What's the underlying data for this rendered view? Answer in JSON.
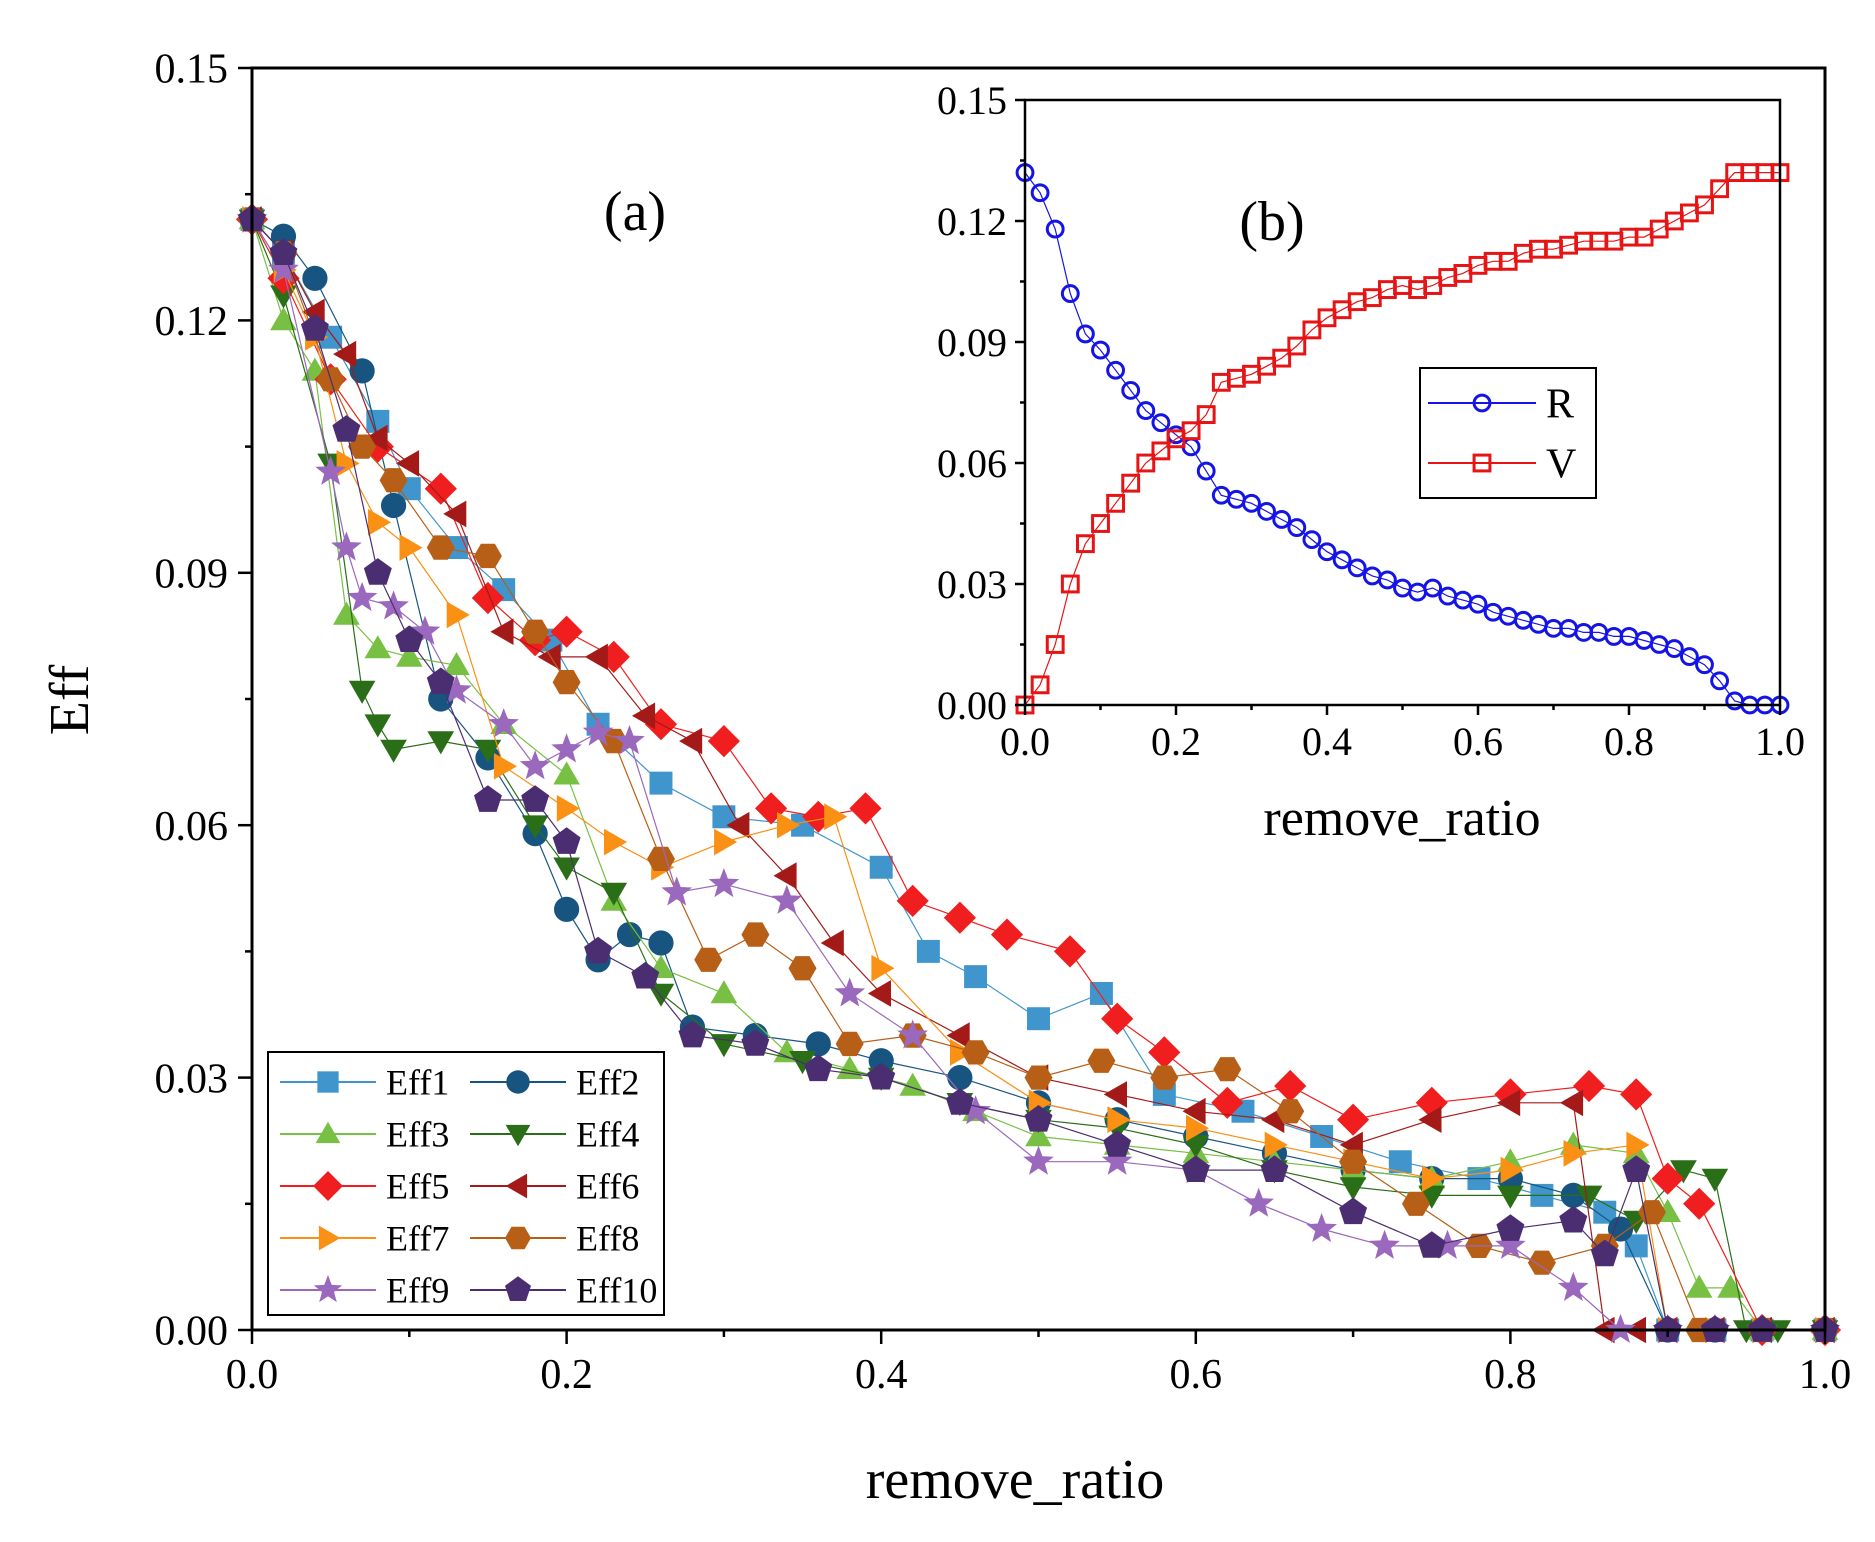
{
  "chart_data": [
    {
      "type": "scatter",
      "panel": "(a)",
      "xlabel": "remove_ratio",
      "ylabel": "Eff",
      "xlim": [
        0.0,
        1.0
      ],
      "ylim": [
        0.0,
        0.15
      ],
      "xticks": [
        "0.0",
        "0.2",
        "0.4",
        "0.6",
        "0.8",
        "1.0"
      ],
      "yticks": [
        "0.00",
        "0.03",
        "0.06",
        "0.09",
        "0.12",
        "0.15"
      ],
      "legend_placement": "bottom-left",
      "series": [
        {
          "name": "Eff1",
          "color": "#4096cc",
          "marker": "square",
          "x": [
            0.0,
            0.02,
            0.05,
            0.08,
            0.1,
            0.13,
            0.16,
            0.19,
            0.22,
            0.26,
            0.3,
            0.35,
            0.4,
            0.43,
            0.46,
            0.5,
            0.54,
            0.58,
            0.63,
            0.68,
            0.73,
            0.78,
            0.82,
            0.86,
            0.88,
            0.9,
            0.93,
            0.96,
            1.0
          ],
          "y": [
            0.132,
            0.128,
            0.118,
            0.108,
            0.1,
            0.093,
            0.088,
            0.082,
            0.072,
            0.065,
            0.061,
            0.06,
            0.055,
            0.045,
            0.042,
            0.037,
            0.04,
            0.028,
            0.026,
            0.023,
            0.02,
            0.018,
            0.016,
            0.014,
            0.01,
            0.0,
            0.0,
            0.0,
            0.0
          ]
        },
        {
          "name": "Eff2",
          "color": "#175580",
          "marker": "circle",
          "x": [
            0.0,
            0.02,
            0.04,
            0.07,
            0.09,
            0.12,
            0.15,
            0.18,
            0.2,
            0.22,
            0.24,
            0.26,
            0.28,
            0.32,
            0.36,
            0.4,
            0.45,
            0.5,
            0.55,
            0.6,
            0.65,
            0.7,
            0.75,
            0.8,
            0.84,
            0.87,
            0.9,
            0.93,
            0.96,
            1.0
          ],
          "y": [
            0.132,
            0.13,
            0.125,
            0.114,
            0.098,
            0.075,
            0.068,
            0.059,
            0.05,
            0.044,
            0.047,
            0.046,
            0.036,
            0.035,
            0.034,
            0.032,
            0.03,
            0.027,
            0.025,
            0.023,
            0.021,
            0.019,
            0.018,
            0.018,
            0.016,
            0.012,
            0.0,
            0.0,
            0.0,
            0.0
          ]
        },
        {
          "name": "Eff3",
          "color": "#77c043",
          "marker": "triangle-up",
          "x": [
            0.0,
            0.02,
            0.04,
            0.06,
            0.08,
            0.1,
            0.13,
            0.16,
            0.2,
            0.23,
            0.26,
            0.3,
            0.34,
            0.38,
            0.42,
            0.46,
            0.5,
            0.55,
            0.6,
            0.65,
            0.7,
            0.75,
            0.8,
            0.84,
            0.88,
            0.9,
            0.92,
            0.94,
            0.96,
            1.0
          ],
          "y": [
            0.132,
            0.12,
            0.114,
            0.085,
            0.081,
            0.08,
            0.079,
            0.072,
            0.066,
            0.051,
            0.043,
            0.04,
            0.033,
            0.031,
            0.029,
            0.026,
            0.023,
            0.022,
            0.021,
            0.02,
            0.019,
            0.018,
            0.02,
            0.022,
            0.021,
            0.014,
            0.005,
            0.005,
            0.0,
            0.0
          ]
        },
        {
          "name": "Eff4",
          "color": "#2a6e18",
          "marker": "triangle-down",
          "x": [
            0.0,
            0.02,
            0.05,
            0.07,
            0.08,
            0.09,
            0.12,
            0.15,
            0.18,
            0.2,
            0.23,
            0.26,
            0.3,
            0.35,
            0.4,
            0.45,
            0.5,
            0.55,
            0.6,
            0.65,
            0.7,
            0.75,
            0.8,
            0.85,
            0.88,
            0.91,
            0.93,
            0.95,
            0.97,
            1.0
          ],
          "y": [
            0.132,
            0.123,
            0.103,
            0.076,
            0.072,
            0.069,
            0.07,
            0.069,
            0.06,
            0.055,
            0.052,
            0.04,
            0.034,
            0.032,
            0.03,
            0.027,
            0.025,
            0.024,
            0.022,
            0.019,
            0.017,
            0.016,
            0.016,
            0.016,
            0.013,
            0.019,
            0.018,
            0.0,
            0.0,
            0.0
          ]
        },
        {
          "name": "Eff5",
          "color": "#f01e1e",
          "marker": "diamond",
          "x": [
            0.0,
            0.02,
            0.05,
            0.08,
            0.12,
            0.15,
            0.18,
            0.2,
            0.23,
            0.26,
            0.3,
            0.33,
            0.36,
            0.39,
            0.42,
            0.45,
            0.48,
            0.52,
            0.55,
            0.58,
            0.62,
            0.66,
            0.7,
            0.75,
            0.8,
            0.85,
            0.88,
            0.9,
            0.92,
            0.96,
            1.0
          ],
          "y": [
            0.132,
            0.125,
            0.113,
            0.105,
            0.1,
            0.087,
            0.082,
            0.083,
            0.08,
            0.072,
            0.07,
            0.062,
            0.061,
            0.062,
            0.051,
            0.049,
            0.047,
            0.045,
            0.037,
            0.033,
            0.027,
            0.029,
            0.025,
            0.027,
            0.028,
            0.029,
            0.028,
            0.018,
            0.015,
            0.0,
            0.0
          ]
        },
        {
          "name": "Eff6",
          "color": "#a31a18",
          "marker": "triangle-left",
          "x": [
            0.0,
            0.02,
            0.04,
            0.06,
            0.08,
            0.1,
            0.13,
            0.16,
            0.19,
            0.22,
            0.25,
            0.28,
            0.31,
            0.34,
            0.37,
            0.4,
            0.45,
            0.5,
            0.55,
            0.6,
            0.65,
            0.7,
            0.75,
            0.8,
            0.84,
            0.86,
            0.88,
            0.9,
            0.93,
            0.96,
            1.0
          ],
          "y": [
            0.132,
            0.128,
            0.121,
            0.116,
            0.106,
            0.103,
            0.097,
            0.083,
            0.08,
            0.08,
            0.073,
            0.07,
            0.06,
            0.054,
            0.046,
            0.04,
            0.035,
            0.03,
            0.028,
            0.026,
            0.025,
            0.022,
            0.025,
            0.027,
            0.027,
            0.0,
            0.0,
            0.0,
            0.0,
            0.0,
            0.0
          ]
        },
        {
          "name": "Eff7",
          "color": "#fa9014",
          "marker": "triangle-right",
          "x": [
            0.0,
            0.02,
            0.04,
            0.06,
            0.08,
            0.1,
            0.13,
            0.16,
            0.2,
            0.23,
            0.26,
            0.3,
            0.34,
            0.37,
            0.4,
            0.45,
            0.5,
            0.55,
            0.6,
            0.65,
            0.7,
            0.75,
            0.8,
            0.84,
            0.88,
            0.9,
            0.93,
            0.96,
            1.0
          ],
          "y": [
            0.132,
            0.126,
            0.118,
            0.103,
            0.096,
            0.093,
            0.085,
            0.067,
            0.062,
            0.058,
            0.055,
            0.058,
            0.06,
            0.061,
            0.043,
            0.033,
            0.027,
            0.025,
            0.024,
            0.022,
            0.02,
            0.018,
            0.019,
            0.021,
            0.022,
            0.0,
            0.0,
            0.0,
            0.0
          ]
        },
        {
          "name": "Eff8",
          "color": "#b75f17",
          "marker": "hexagon",
          "x": [
            0.0,
            0.02,
            0.05,
            0.07,
            0.09,
            0.12,
            0.15,
            0.18,
            0.2,
            0.23,
            0.26,
            0.29,
            0.32,
            0.35,
            0.38,
            0.42,
            0.46,
            0.5,
            0.54,
            0.58,
            0.62,
            0.66,
            0.7,
            0.74,
            0.78,
            0.82,
            0.86,
            0.89,
            0.92,
            0.96,
            1.0
          ],
          "y": [
            0.132,
            0.128,
            0.113,
            0.105,
            0.101,
            0.093,
            0.092,
            0.083,
            0.077,
            0.07,
            0.056,
            0.044,
            0.047,
            0.043,
            0.034,
            0.035,
            0.033,
            0.03,
            0.032,
            0.03,
            0.031,
            0.026,
            0.02,
            0.015,
            0.01,
            0.008,
            0.01,
            0.014,
            0.0,
            0.0,
            0.0
          ]
        },
        {
          "name": "Eff9",
          "color": "#9a68bd",
          "marker": "star",
          "x": [
            0.0,
            0.02,
            0.05,
            0.06,
            0.07,
            0.09,
            0.11,
            0.13,
            0.16,
            0.18,
            0.2,
            0.22,
            0.24,
            0.27,
            0.3,
            0.34,
            0.38,
            0.42,
            0.46,
            0.5,
            0.55,
            0.6,
            0.64,
            0.68,
            0.72,
            0.76,
            0.8,
            0.84,
            0.87,
            0.9,
            0.93,
            0.96,
            1.0
          ],
          "y": [
            0.132,
            0.126,
            0.102,
            0.093,
            0.087,
            0.086,
            0.083,
            0.076,
            0.072,
            0.067,
            0.069,
            0.071,
            0.07,
            0.052,
            0.053,
            0.051,
            0.04,
            0.035,
            0.026,
            0.02,
            0.02,
            0.019,
            0.015,
            0.012,
            0.01,
            0.01,
            0.01,
            0.005,
            0.0,
            0.0,
            0.0,
            0.0,
            0.0
          ]
        },
        {
          "name": "Eff10",
          "color": "#4b2d72",
          "marker": "pentagon",
          "x": [
            0.0,
            0.02,
            0.04,
            0.06,
            0.08,
            0.1,
            0.12,
            0.15,
            0.18,
            0.2,
            0.22,
            0.25,
            0.28,
            0.32,
            0.36,
            0.4,
            0.45,
            0.5,
            0.55,
            0.6,
            0.65,
            0.7,
            0.75,
            0.8,
            0.84,
            0.86,
            0.88,
            0.9,
            0.93,
            0.96,
            1.0
          ],
          "y": [
            0.132,
            0.128,
            0.119,
            0.107,
            0.09,
            0.082,
            0.077,
            0.063,
            0.063,
            0.058,
            0.045,
            0.042,
            0.035,
            0.034,
            0.031,
            0.03,
            0.027,
            0.025,
            0.022,
            0.019,
            0.019,
            0.014,
            0.01,
            0.012,
            0.013,
            0.009,
            0.019,
            0.0,
            0.0,
            0.0,
            0.0
          ]
        }
      ]
    },
    {
      "type": "scatter",
      "panel": "(b)",
      "xlabel": "remove_ratio",
      "ylabel": "",
      "xlim": [
        0.0,
        1.0
      ],
      "ylim": [
        0.0,
        0.15
      ],
      "xticks": [
        "0.0",
        "0.2",
        "0.4",
        "0.6",
        "0.8",
        "1.0"
      ],
      "yticks": [
        "0.00",
        "0.03",
        "0.06",
        "0.09",
        "0.12",
        "0.15"
      ],
      "legend_placement": "center-right",
      "series": [
        {
          "name": "R",
          "color": "#1414e6",
          "marker": "circle-open",
          "x": [
            0.0,
            0.02,
            0.04,
            0.06,
            0.08,
            0.1,
            0.12,
            0.14,
            0.16,
            0.18,
            0.2,
            0.22,
            0.24,
            0.26,
            0.28,
            0.3,
            0.32,
            0.34,
            0.36,
            0.38,
            0.4,
            0.42,
            0.44,
            0.46,
            0.48,
            0.5,
            0.52,
            0.54,
            0.56,
            0.58,
            0.6,
            0.62,
            0.64,
            0.66,
            0.68,
            0.7,
            0.72,
            0.74,
            0.76,
            0.78,
            0.8,
            0.82,
            0.84,
            0.86,
            0.88,
            0.9,
            0.92,
            0.94,
            0.96,
            0.98,
            1.0
          ],
          "y": [
            0.132,
            0.127,
            0.118,
            0.102,
            0.092,
            0.088,
            0.083,
            0.078,
            0.073,
            0.07,
            0.067,
            0.064,
            0.058,
            0.052,
            0.051,
            0.05,
            0.048,
            0.046,
            0.044,
            0.041,
            0.038,
            0.036,
            0.034,
            0.032,
            0.031,
            0.029,
            0.028,
            0.029,
            0.027,
            0.026,
            0.025,
            0.023,
            0.022,
            0.021,
            0.02,
            0.019,
            0.019,
            0.018,
            0.018,
            0.017,
            0.017,
            0.016,
            0.015,
            0.014,
            0.012,
            0.01,
            0.006,
            0.001,
            0.0,
            0.0,
            0.0
          ]
        },
        {
          "name": "V",
          "color": "#e61414",
          "marker": "square-open",
          "x": [
            0.0,
            0.02,
            0.04,
            0.06,
            0.08,
            0.1,
            0.12,
            0.14,
            0.16,
            0.18,
            0.2,
            0.22,
            0.24,
            0.26,
            0.28,
            0.3,
            0.32,
            0.34,
            0.36,
            0.38,
            0.4,
            0.42,
            0.44,
            0.46,
            0.48,
            0.5,
            0.52,
            0.54,
            0.56,
            0.58,
            0.6,
            0.62,
            0.64,
            0.66,
            0.68,
            0.7,
            0.72,
            0.74,
            0.76,
            0.78,
            0.8,
            0.82,
            0.84,
            0.86,
            0.88,
            0.9,
            0.92,
            0.94,
            0.96,
            0.98,
            1.0
          ],
          "y": [
            0.0,
            0.005,
            0.015,
            0.03,
            0.04,
            0.045,
            0.05,
            0.055,
            0.06,
            0.063,
            0.066,
            0.068,
            0.072,
            0.08,
            0.081,
            0.082,
            0.084,
            0.086,
            0.089,
            0.093,
            0.096,
            0.098,
            0.1,
            0.101,
            0.103,
            0.104,
            0.103,
            0.104,
            0.106,
            0.107,
            0.109,
            0.11,
            0.11,
            0.112,
            0.113,
            0.113,
            0.114,
            0.115,
            0.115,
            0.115,
            0.116,
            0.116,
            0.118,
            0.12,
            0.122,
            0.124,
            0.128,
            0.132,
            0.132,
            0.132,
            0.132
          ]
        }
      ]
    }
  ]
}
